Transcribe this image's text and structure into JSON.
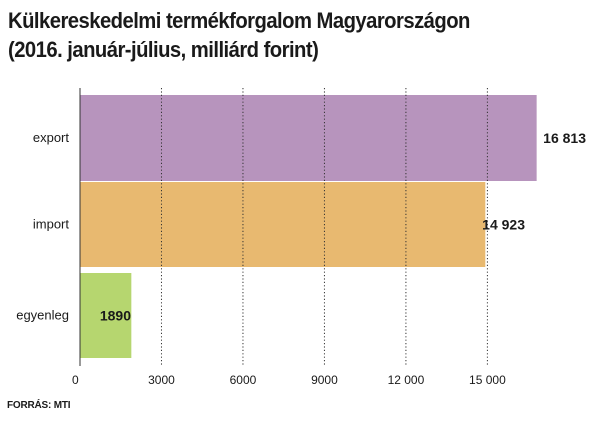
{
  "title_line1": "Külkereskedelmi termékforgalom Magyarországon",
  "title_line2": "(2016. január-július, milliárd forint)",
  "source": "FORRÁS: MTI",
  "colors": {
    "export": "#b794bd",
    "import": "#e8b970",
    "egyenleg": "#b6d66f",
    "gridline": "#333333",
    "text": "#1a1a1a"
  },
  "chart_data": {
    "type": "bar",
    "orientation": "horizontal",
    "categories": [
      "export",
      "import",
      "egyenleg"
    ],
    "values": [
      16813,
      14923,
      1890
    ],
    "value_labels": [
      "16 813",
      "14 923",
      "1890"
    ],
    "xlim": [
      0,
      17500
    ],
    "xticks": [
      0,
      3000,
      6000,
      9000,
      12000,
      15000
    ],
    "xtick_labels": [
      "0",
      "3000",
      "6000",
      "9000",
      "12 000",
      "15 000"
    ],
    "grid": "vertical dotted"
  }
}
